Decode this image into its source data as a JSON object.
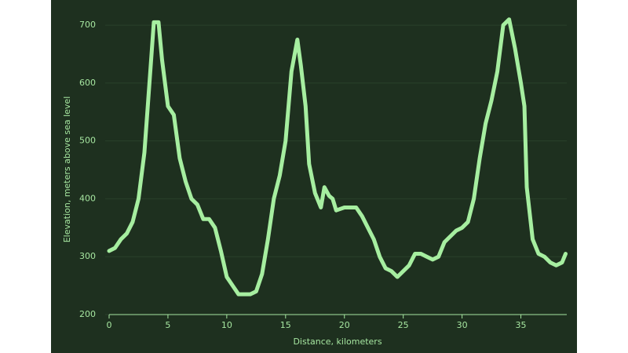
{
  "chart_data": {
    "type": "line",
    "xlabel": "Distance, kilometers",
    "ylabel": "Elevation, meters above sea level",
    "x": [
      0,
      0.5,
      1,
      1.5,
      2,
      2.5,
      3,
      3.5,
      3.8,
      4.2,
      4.5,
      5,
      5.5,
      6,
      6.5,
      7,
      7.5,
      8,
      8.5,
      9,
      9.5,
      10,
      10.5,
      11,
      11.5,
      12,
      12.5,
      13,
      13.5,
      14,
      14.5,
      15,
      15.5,
      16,
      16.3,
      16.7,
      17,
      17.5,
      18,
      18.3,
      18.7,
      19,
      19.3,
      20,
      20.5,
      21,
      21.5,
      22,
      22.5,
      23,
      23.5,
      24,
      24.5,
      25,
      25.5,
      26,
      26.5,
      27,
      27.5,
      28,
      28.5,
      29,
      29.5,
      30,
      30.5,
      31,
      31.5,
      32,
      32.5,
      33,
      33.5,
      34,
      34.5,
      35,
      35.3,
      35.5,
      36,
      36.5,
      37,
      37.5,
      38,
      38.5,
      38.8
    ],
    "series": [
      {
        "name": "Elevation",
        "color": "#a6eea0",
        "values": [
          310,
          315,
          330,
          340,
          360,
          400,
          480,
          620,
          705,
          705,
          640,
          560,
          545,
          470,
          430,
          400,
          390,
          365,
          365,
          350,
          310,
          265,
          250,
          235,
          235,
          235,
          240,
          270,
          330,
          400,
          440,
          500,
          620,
          675,
          630,
          560,
          460,
          410,
          385,
          420,
          405,
          400,
          380,
          385,
          385,
          385,
          370,
          350,
          330,
          300,
          280,
          275,
          265,
          275,
          285,
          305,
          305,
          300,
          295,
          300,
          325,
          335,
          345,
          350,
          360,
          400,
          470,
          530,
          570,
          620,
          700,
          710,
          660,
          600,
          560,
          420,
          330,
          305,
          300,
          290,
          285,
          290,
          305
        ]
      }
    ],
    "xlim": [
      0,
      38.9
    ],
    "xticks": [
      0,
      5,
      10,
      15,
      20,
      25,
      30,
      35
    ],
    "ylim": [
      200,
      715
    ],
    "yticks": [
      200,
      300,
      400,
      500,
      600,
      700
    ]
  }
}
